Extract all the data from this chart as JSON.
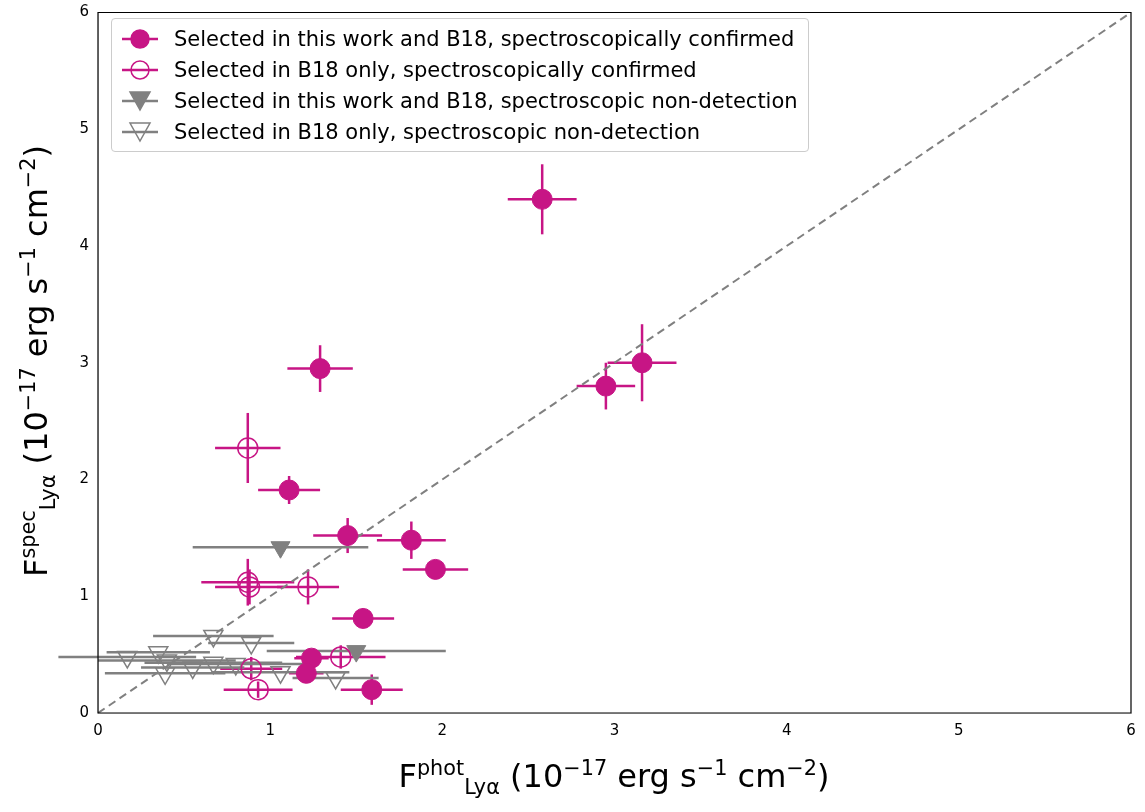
{
  "chart_data": {
    "type": "scatter",
    "xlabel": "F$^{phot}$$_{Lyα}$ (10$^{−17}$ erg s$^{−1}$ cm$^{−2}$)",
    "ylabel": "F$^{spec}$$_{Lyα}$ (10$^{−17}$ erg s$^{−1}$ cm$^{−2}$)",
    "xlim": [
      0,
      6
    ],
    "ylim": [
      0,
      6
    ],
    "xticks": [
      0,
      1,
      2,
      3,
      4,
      5,
      6
    ],
    "yticks": [
      0,
      1,
      2,
      3,
      4,
      5,
      6
    ],
    "grid": false,
    "legend": "top left",
    "series": [
      {
        "name": "Selected in this work and B18, spectroscopically confirmed",
        "color": "#c71585",
        "marker": "circle",
        "x": [
          2.58,
          3.16,
          2.95,
          1.29,
          1.11,
          1.45,
          1.82,
          1.96,
          1.54,
          1.24,
          1.21,
          1.59
        ],
        "values": [
          4.4,
          3.0,
          2.8,
          2.95,
          1.91,
          1.52,
          1.48,
          1.23,
          0.81,
          0.47,
          0.34,
          0.2
        ],
        "errors": [
          0.3,
          0.33,
          0.2,
          0.2,
          0.12,
          0.15,
          0.16,
          0.05,
          0.05,
          0.05,
          0.05,
          0.13
        ],
        "xerrors": [
          0.2,
          0.2,
          0.17,
          0.19,
          0.18,
          0.2,
          0.2,
          0.19,
          0.18,
          0.1,
          0.1,
          0.18
        ]
      },
      {
        "name": "Selected in B18 only, spectroscopically confirmed",
        "color": "#c71585",
        "marker": "circle-open",
        "x": [
          0.87,
          0.87,
          0.88,
          1.22,
          1.41,
          0.89,
          0.93
        ],
        "values": [
          2.27,
          1.12,
          1.08,
          1.08,
          0.48,
          0.38,
          0.2
        ],
        "errors": [
          0.3,
          0.2,
          0.15,
          0.15,
          0.1,
          0.1,
          0.07
        ],
        "xerrors": [
          0.19,
          0.27,
          0.2,
          0.18,
          0.26,
          0.18,
          0.2
        ]
      },
      {
        "name": "Selected in this work and B18, spectroscopic non-detection",
        "color": "#808080",
        "marker": "triangle-down",
        "x": [
          1.06,
          1.5
        ],
        "values": [
          1.42,
          0.53
        ],
        "xerrors": [
          0.51,
          0.52
        ]
      },
      {
        "name": "Selected in B18 only, spectroscopic non-detection",
        "color": "#808080",
        "marker": "triangle-down-open",
        "x": [
          0.17,
          0.35,
          0.4,
          0.39,
          0.55,
          0.67,
          0.67,
          0.89,
          0.8,
          1.06,
          1.16,
          1.38
        ],
        "values": [
          0.48,
          0.52,
          0.45,
          0.34,
          0.39,
          0.66,
          0.43,
          0.6,
          0.42,
          0.35,
          null,
          0.3
        ],
        "xerrors": [
          0.4,
          0.3,
          0.4,
          0.35,
          0.3,
          0.35,
          0.4,
          0.25,
          0.4,
          0.4,
          null,
          0.25
        ]
      },
      {
        "type": "line",
        "color": "#808080",
        "line_style": "dashed",
        "x": [
          0,
          6
        ],
        "values": [
          0,
          6
        ]
      }
    ]
  }
}
